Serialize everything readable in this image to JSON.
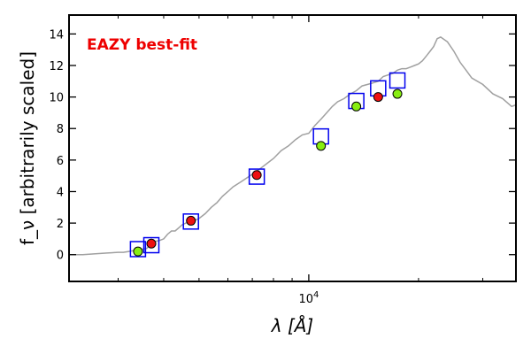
{
  "chart_data": {
    "type": "scatter",
    "x_scale": "log",
    "xlim": [
      2200,
      37000
    ],
    "ylim": [
      -1.7,
      15.2
    ],
    "xlabel": "λ [Å]",
    "ylabel": "f_ν [arbitrarily scaled]",
    "x_ticks": [
      {
        "value": 10000,
        "base": "10",
        "exp": "4"
      }
    ],
    "x_minor_ticks": [
      3000,
      4000,
      5000,
      6000,
      7000,
      8000,
      9000,
      20000,
      30000
    ],
    "y_ticks": [
      0,
      2,
      4,
      6,
      8,
      10,
      12,
      14
    ],
    "grid": false,
    "annotation": {
      "text": "EAZY best-fit",
      "color": "#ee0000"
    },
    "colors": {
      "template": "#a0a0a0",
      "model_box": "#0000ee",
      "red_point": "#ee1111",
      "green_point": "#88ee11"
    },
    "series": [
      {
        "kind": "line",
        "x": [
          2200,
          2400,
          2600,
          2800,
          3000,
          3100,
          3200,
          3300,
          3400,
          3500,
          3600,
          3650,
          3700,
          3750,
          3800,
          3900,
          4000,
          4100,
          4200,
          4300,
          4400,
          4500,
          4700,
          4900,
          5000,
          5200,
          5400,
          5600,
          5800,
          6000,
          6200,
          6500,
          6800,
          7100,
          7400,
          7700,
          8000,
          8400,
          8800,
          9200,
          9600,
          10000,
          10400,
          10800,
          11200,
          11600,
          12000,
          12500,
          13000,
          13500,
          14000,
          14500,
          15000,
          15500,
          16000,
          16500,
          17000,
          17500,
          18000,
          18500,
          19000,
          19500,
          20000,
          20500,
          21000,
          21500,
          22000,
          22500,
          23000,
          24000,
          25000,
          26000,
          27000,
          28000,
          30000,
          32000,
          34000,
          36000,
          37000
        ],
        "y": [
          0.0,
          0.0,
          0.05,
          0.1,
          0.15,
          0.15,
          0.2,
          0.25,
          0.3,
          0.35,
          0.4,
          0.6,
          0.7,
          0.8,
          0.85,
          0.9,
          1.0,
          1.3,
          1.5,
          1.5,
          1.7,
          1.9,
          2.1,
          2.2,
          2.3,
          2.6,
          3.0,
          3.3,
          3.7,
          4.0,
          4.3,
          4.6,
          4.9,
          5.2,
          5.5,
          5.8,
          6.1,
          6.6,
          6.9,
          7.3,
          7.6,
          7.7,
          8.2,
          8.6,
          9.0,
          9.4,
          9.7,
          9.9,
          10.2,
          10.4,
          10.7,
          10.8,
          10.9,
          11.0,
          11.3,
          11.4,
          11.5,
          11.7,
          11.8,
          11.8,
          11.9,
          12.0,
          12.1,
          12.3,
          12.6,
          12.9,
          13.2,
          13.7,
          13.8,
          13.5,
          12.9,
          12.2,
          11.7,
          11.2,
          10.8,
          10.2,
          9.9,
          9.4,
          9.5
        ]
      },
      {
        "kind": "model_box",
        "x": [
          3400,
          3700,
          4750,
          7200,
          10800,
          13500,
          15500,
          17500
        ],
        "y": [
          0.35,
          0.6,
          2.1,
          4.95,
          7.5,
          9.75,
          10.55,
          11.05
        ]
      },
      {
        "kind": "observed_point",
        "x": [
          3400,
          3700,
          4750,
          7200,
          10800,
          13500,
          15500,
          17500
        ],
        "y": [
          0.2,
          0.7,
          2.15,
          5.05,
          6.9,
          9.4,
          10.0,
          10.2
        ],
        "colors": [
          "green",
          "red",
          "red",
          "red",
          "green",
          "green",
          "red",
          "green"
        ]
      }
    ]
  }
}
